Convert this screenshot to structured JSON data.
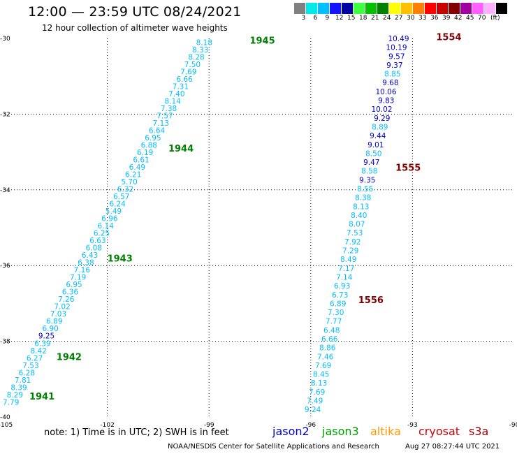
{
  "header": {
    "title": "12:00 — 23:59 UTC 08/24/2021",
    "subtitle": "12 hour collection of altimeter wave heights"
  },
  "legend": {
    "colors": [
      "#808080",
      "#00e8e8",
      "#00bfff",
      "#1414ff",
      "#0000a0",
      "#40ff40",
      "#00c000",
      "#008000",
      "#ffff00",
      "#ffc000",
      "#ff8000",
      "#ff0000",
      "#c80000",
      "#800000",
      "#a000a0",
      "#ff60ff",
      "#ffb0ff",
      "#000000"
    ],
    "labels": [
      "3",
      "6",
      "9",
      "12",
      "15",
      "18",
      "21",
      "24",
      "27",
      "30",
      "33",
      "36",
      "39",
      "42",
      "45",
      "70",
      "(ft)"
    ]
  },
  "footer": {
    "note": "note: 1) Time is in UTC; 2) SWH is in feet",
    "satellites": [
      {
        "name": "jason2",
        "color": "#0000cc"
      },
      {
        "name": "jason3",
        "color": "#00a000"
      },
      {
        "name": "altika",
        "color": "#ff9900"
      },
      {
        "name": "cryosat",
        "color": "#cc0000"
      },
      {
        "name": "s3a",
        "color": "#990000"
      }
    ],
    "credit": "NOAA/NESDIS Center for Satellite Applications and Research",
    "timestamp": "Aug 27 08:27:44 UTC 2021"
  },
  "chart_data": {
    "type": "scatter",
    "xlim": [
      -105,
      -90
    ],
    "ylim": [
      -40,
      -30
    ],
    "x_ticks": [
      "-105",
      "-102",
      "-99",
      "-96",
      "-93",
      "-90"
    ],
    "y_ticks": [
      "-30",
      "-32",
      "-34",
      "-36",
      "-38",
      "-40"
    ],
    "grid": true,
    "track_colors": {
      "light": "#00bfff",
      "dark": "#0000cc"
    },
    "time_label_colors": {
      "west": "#008000",
      "east": "#800000"
    },
    "tracks": [
      {
        "name": "west",
        "lon_start": -98.9,
        "lat_start": -30.1,
        "lon_end": -104.6,
        "lat_end": -39.6,
        "values": [
          "8.18",
          "8.33",
          "8.28",
          "7.50",
          "7.69",
          "6.66",
          "7.31",
          "7.40",
          "8.14",
          "7.38",
          "7.57",
          "7.13",
          "6.64",
          "6.95",
          "6.88",
          "6.19",
          "6.61",
          "6.49",
          "6.21",
          "5.70",
          "6.32",
          "6.57",
          "6.24",
          "5.49",
          "6.96",
          "6.14",
          "6.25",
          "6.63",
          "6.08",
          "6.43",
          "6.38",
          "7.16",
          "7.19",
          "6.95",
          "6.36",
          "7.26",
          "7.02",
          "7.03",
          "6.89",
          "6.90",
          "9.25",
          "6.39",
          "8.42",
          "6.27",
          "7.53",
          "6.28",
          "7.81",
          "8.39",
          "8.29",
          "7.79"
        ],
        "dark_indices": [
          40
        ],
        "time_labels": [
          {
            "text": "1945",
            "lon": -97.8,
            "lat": -30.05
          },
          {
            "text": "1944",
            "lon": -100.2,
            "lat": -32.9
          },
          {
            "text": "1943",
            "lon": -102.0,
            "lat": -35.8
          },
          {
            "text": "1942",
            "lon": -103.5,
            "lat": -38.4
          },
          {
            "text": "1941",
            "lon": -104.3,
            "lat": -39.45
          }
        ]
      },
      {
        "name": "east",
        "lon_start": -93.1,
        "lat_start": -30.0,
        "lon_end": -95.7,
        "lat_end": -39.8,
        "values": [
          "10.49",
          "10.19",
          "9.57",
          "9.37",
          "8.85",
          "9.68",
          "10.06",
          "9.83",
          "10.02",
          "9.29",
          "8.89",
          "9.44",
          "9.01",
          "8.50",
          "9.47",
          "8.58",
          "9.35",
          "8.55",
          "8.38",
          "8.13",
          "8.40",
          "8.07",
          "7.53",
          "7.92",
          "7.29",
          "8.49",
          "7.17",
          "7.14",
          "6.93",
          "6.73",
          "6.89",
          "7.30",
          "7.77",
          "6.48",
          "6.66",
          "8.86",
          "7.46",
          "7.69",
          "8.45",
          "8.13",
          "7.69",
          "7.49",
          "9.24"
        ],
        "dark_indices": [
          0,
          1,
          2,
          3,
          5,
          6,
          7,
          8,
          9,
          11,
          12,
          14,
          16
        ],
        "time_labels": [
          {
            "text": "1554",
            "lon": -92.3,
            "lat": -29.95
          },
          {
            "text": "1555",
            "lon": -93.5,
            "lat": -33.4
          },
          {
            "text": "1556",
            "lon": -94.6,
            "lat": -36.9
          }
        ]
      }
    ]
  }
}
